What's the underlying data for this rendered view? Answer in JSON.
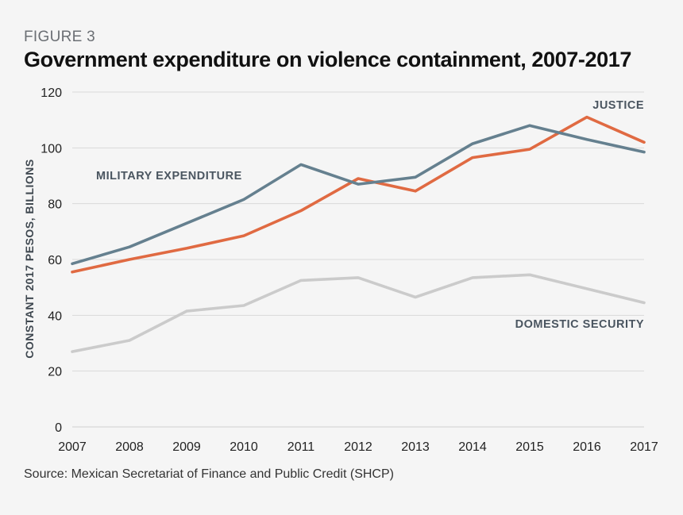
{
  "figure_label": "FIGURE 3",
  "source": "Source: Mexican Secretariat of Finance and Public Credit (SHCP)",
  "chart_data": {
    "type": "line",
    "title": "Government expenditure on violence containment, 2007-2017",
    "xlabel": "",
    "ylabel": "CONSTANT 2017 PESOS, BILLIONS",
    "x": [
      "2007",
      "2008",
      "2009",
      "2010",
      "2011",
      "2012",
      "2013",
      "2014",
      "2015",
      "2016",
      "2017"
    ],
    "yticks": [
      0,
      20,
      40,
      60,
      80,
      100,
      120
    ],
    "ylim": [
      0,
      120
    ],
    "grid": true,
    "series": [
      {
        "name": "MILITARY EXPENDITURE",
        "color": "#65808f",
        "values": [
          58.5,
          64.5,
          73,
          81.5,
          94,
          87,
          89.5,
          101.5,
          108,
          103,
          98.5
        ]
      },
      {
        "name": "JUSTICE",
        "color": "#e06a42",
        "values": [
          55.5,
          60,
          64,
          68.5,
          77.5,
          89,
          84.5,
          96.5,
          99.5,
          111,
          102
        ]
      },
      {
        "name": "DOMESTIC SECURITY",
        "color": "#cbcbcb",
        "values": [
          27,
          31,
          41.5,
          43.5,
          52.5,
          53.5,
          46.5,
          53.5,
          54.5,
          49.5,
          44.5
        ]
      }
    ]
  }
}
